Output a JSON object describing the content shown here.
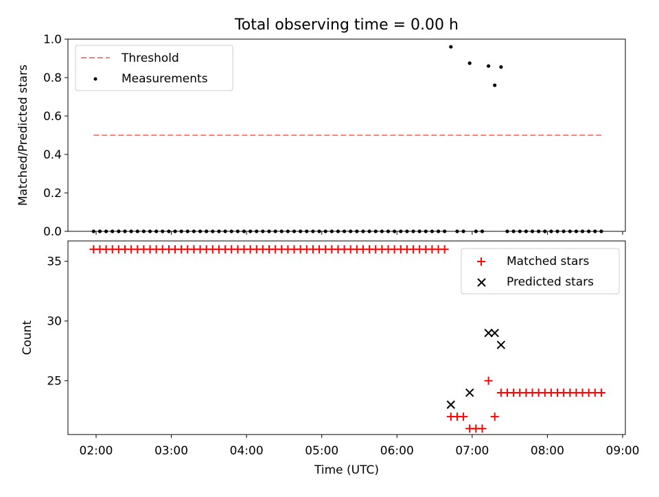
{
  "chart_data": [
    {
      "type": "scatter",
      "title": "Total observing time = 0.00 h",
      "xlabel": "",
      "ylabel": "Matched/Predicted stars",
      "ylim": [
        0,
        1
      ],
      "yticks": [
        "0.0",
        "0.2",
        "0.4",
        "0.6",
        "0.8",
        "1.0"
      ],
      "legend_position": "upper-left",
      "threshold": {
        "name": "Threshold",
        "value": 0.5,
        "x_start": "01:58",
        "x_end": "08:43",
        "color": "#ff7f7f",
        "style": "dashed"
      },
      "series": [
        {
          "name": "Measurements",
          "color": "#000000",
          "x": [
            "01:58",
            "02:03",
            "02:08",
            "02:13",
            "02:18",
            "02:23",
            "02:28",
            "02:33",
            "02:38",
            "02:43",
            "02:48",
            "02:53",
            "02:58",
            "03:03",
            "03:08",
            "03:13",
            "03:18",
            "03:23",
            "03:28",
            "03:33",
            "03:38",
            "03:43",
            "03:48",
            "03:53",
            "03:58",
            "04:03",
            "04:08",
            "04:13",
            "04:18",
            "04:23",
            "04:28",
            "04:33",
            "04:38",
            "04:43",
            "04:48",
            "04:53",
            "04:58",
            "05:03",
            "05:08",
            "05:13",
            "05:18",
            "05:23",
            "05:28",
            "05:33",
            "05:38",
            "05:43",
            "05:48",
            "05:53",
            "05:58",
            "06:03",
            "06:08",
            "06:13",
            "06:18",
            "06:23",
            "06:28",
            "06:33",
            "06:38",
            "06:43",
            "06:48",
            "06:53",
            "06:58",
            "07:03",
            "07:08",
            "07:13",
            "07:18",
            "07:23",
            "07:28",
            "07:33",
            "07:38",
            "07:43",
            "07:48",
            "07:53",
            "07:58",
            "08:03",
            "08:08",
            "08:13",
            "08:18",
            "08:23",
            "08:28",
            "08:33",
            "08:38",
            "08:43"
          ],
          "y": [
            0,
            0,
            0,
            0,
            0,
            0,
            0,
            0,
            0,
            0,
            0,
            0,
            0,
            0,
            0,
            0,
            0,
            0,
            0,
            0,
            0,
            0,
            0,
            0,
            0,
            0,
            0,
            0,
            0,
            0,
            0,
            0,
            0,
            0,
            0,
            0,
            0,
            0,
            0,
            0,
            0,
            0,
            0,
            0,
            0,
            0,
            0,
            0,
            0,
            0,
            0,
            0,
            0,
            0,
            0,
            0,
            0,
            0.96,
            0,
            0,
            0.875,
            0,
            0,
            0.86,
            0.76,
            0.855,
            0,
            0,
            0,
            0,
            0,
            0,
            0,
            0,
            0,
            0,
            0,
            0,
            0,
            0,
            0,
            0
          ]
        }
      ]
    },
    {
      "type": "scatter",
      "title": "",
      "xlabel": "Time (UTC)",
      "ylabel": "Count",
      "ylim": [
        20.5,
        36.7
      ],
      "yticks": [
        "25",
        "30",
        "35"
      ],
      "xticks": [
        "02:00",
        "03:00",
        "04:00",
        "05:00",
        "06:00",
        "07:00",
        "08:00",
        "09:00"
      ],
      "legend_position": "upper-right",
      "series": [
        {
          "name": "Matched stars",
          "marker": "plus",
          "color": "#ff0000",
          "x": [
            "01:58",
            "02:03",
            "02:08",
            "02:13",
            "02:18",
            "02:23",
            "02:28",
            "02:33",
            "02:38",
            "02:43",
            "02:48",
            "02:53",
            "02:58",
            "03:03",
            "03:08",
            "03:13",
            "03:18",
            "03:23",
            "03:28",
            "03:33",
            "03:38",
            "03:43",
            "03:48",
            "03:53",
            "03:58",
            "04:03",
            "04:08",
            "04:13",
            "04:18",
            "04:23",
            "04:28",
            "04:33",
            "04:38",
            "04:43",
            "04:48",
            "04:53",
            "04:58",
            "05:03",
            "05:08",
            "05:13",
            "05:18",
            "05:23",
            "05:28",
            "05:33",
            "05:38",
            "05:43",
            "05:48",
            "05:53",
            "05:58",
            "06:03",
            "06:08",
            "06:13",
            "06:18",
            "06:23",
            "06:28",
            "06:33",
            "06:38",
            "06:43",
            "06:48",
            "06:53",
            "06:58",
            "07:03",
            "07:08",
            "07:13",
            "07:18",
            "07:23",
            "07:28",
            "07:33",
            "07:38",
            "07:43",
            "07:48",
            "07:53",
            "07:58",
            "08:03",
            "08:08",
            "08:13",
            "08:18",
            "08:23",
            "08:28",
            "08:33",
            "08:38",
            "08:43"
          ],
          "y": [
            36,
            36,
            36,
            36,
            36,
            36,
            36,
            36,
            36,
            36,
            36,
            36,
            36,
            36,
            36,
            36,
            36,
            36,
            36,
            36,
            36,
            36,
            36,
            36,
            36,
            36,
            36,
            36,
            36,
            36,
            36,
            36,
            36,
            36,
            36,
            36,
            36,
            36,
            36,
            36,
            36,
            36,
            36,
            36,
            36,
            36,
            36,
            36,
            36,
            36,
            36,
            36,
            36,
            36,
            36,
            36,
            36,
            22,
            22,
            22,
            21,
            21,
            21,
            25,
            22,
            24,
            24,
            24,
            24,
            24,
            24,
            24,
            24,
            24,
            24,
            24,
            24,
            24,
            24,
            24,
            24,
            24
          ]
        },
        {
          "name": "Predicted stars",
          "marker": "x",
          "color": "#000000",
          "x": [
            "06:43",
            "06:58",
            "07:13",
            "07:18",
            "07:23"
          ],
          "y": [
            23,
            24,
            29,
            29,
            28
          ]
        }
      ]
    }
  ]
}
